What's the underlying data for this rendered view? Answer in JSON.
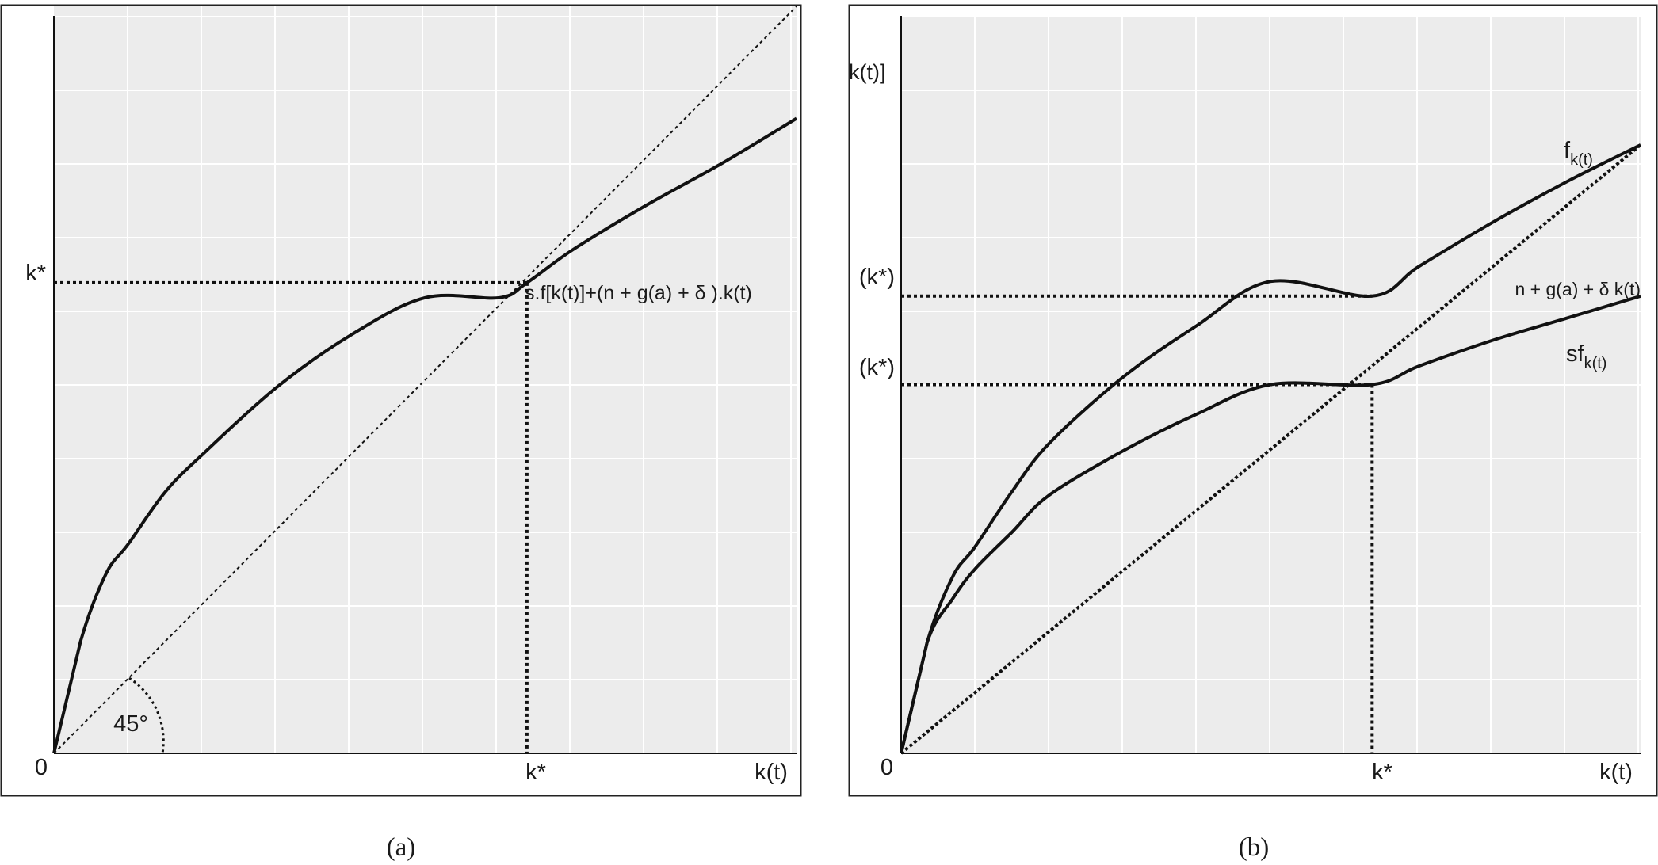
{
  "chart_data": [
    {
      "type": "line",
      "caption": "(a)",
      "xlabel": "k(t)",
      "ylabel": "",
      "origin_label": "0",
      "xlim": [
        0,
        10
      ],
      "ylim": [
        0,
        10
      ],
      "grid": true,
      "series": [
        {
          "name": "",
          "x": [
            0,
            0.36,
            0.7,
            1,
            1.5,
            2,
            3,
            4,
            5,
            6,
            6.37,
            7,
            8,
            9,
            10
          ],
          "y": [
            0,
            1.5,
            2.4,
            2.8,
            3.5,
            4.0,
            4.9,
            5.6,
            6.1,
            6.1,
            6.3,
            6.75,
            7.35,
            7.9,
            8.5
          ],
          "style": "solid"
        },
        {
          "name": "",
          "x": [
            0,
            10
          ],
          "y": [
            0,
            10
          ],
          "style": "dotted"
        }
      ],
      "equilibrium": {
        "x": 6.37,
        "y": 6.3
      },
      "annotations": [
        {
          "text": "s.f[k(t)]+(n + g(a) + δ ).k(t)",
          "x": 6.4,
          "y": 6.0
        },
        {
          "text": "45°",
          "x": 0.8,
          "y": 0.4
        }
      ],
      "x_ticks": [
        {
          "value": 6.37,
          "label": "k*"
        }
      ],
      "y_ticks": [
        {
          "value": 6.3,
          "label": "k*"
        }
      ]
    },
    {
      "type": "line",
      "caption": "(b)",
      "xlabel": "k(t)",
      "ylabel": "k(t)]",
      "origin_label": "0",
      "xlim": [
        0,
        10
      ],
      "ylim": [
        0,
        10
      ],
      "grid": true,
      "series": [
        {
          "name": "f_{k(t)}",
          "label_main": "f",
          "label_sub": "k(t)",
          "x": [
            0,
            0.35,
            0.7,
            1,
            1.5,
            2,
            3,
            4,
            5,
            6.37,
            7,
            8,
            9,
            10
          ],
          "y": [
            0,
            1.5,
            2.4,
            2.8,
            3.55,
            4.2,
            5.1,
            5.8,
            6.4,
            6.2,
            6.6,
            7.2,
            7.75,
            8.25
          ],
          "style": "solid"
        },
        {
          "name": "sf_{k(t)}",
          "label_main": "sf",
          "label_sub": "k(t)",
          "x": [
            0,
            0.35,
            0.7,
            1,
            1.5,
            2,
            3,
            4,
            5,
            6.37,
            7,
            8,
            9,
            10
          ],
          "y": [
            0,
            1.5,
            2.1,
            2.5,
            3.0,
            3.5,
            4.1,
            4.6,
            5.0,
            5.0,
            5.25,
            5.6,
            5.9,
            6.2
          ],
          "style": "solid"
        },
        {
          "name": "n + g(a) + δ k(t)",
          "label_main": "n + g(a) + δ k(t)",
          "label_sub": "",
          "x": [
            0,
            10
          ],
          "y": [
            0,
            8.25
          ],
          "style": "dotted"
        }
      ],
      "equilibrium": {
        "x": 6.37,
        "y": 5.0
      },
      "x_ticks": [
        {
          "value": 6.37,
          "label": "k*"
        }
      ],
      "y_ticks": [
        {
          "value": 6.2,
          "label": "(k*)"
        },
        {
          "value": 5.0,
          "label": "(k*)"
        }
      ]
    }
  ]
}
